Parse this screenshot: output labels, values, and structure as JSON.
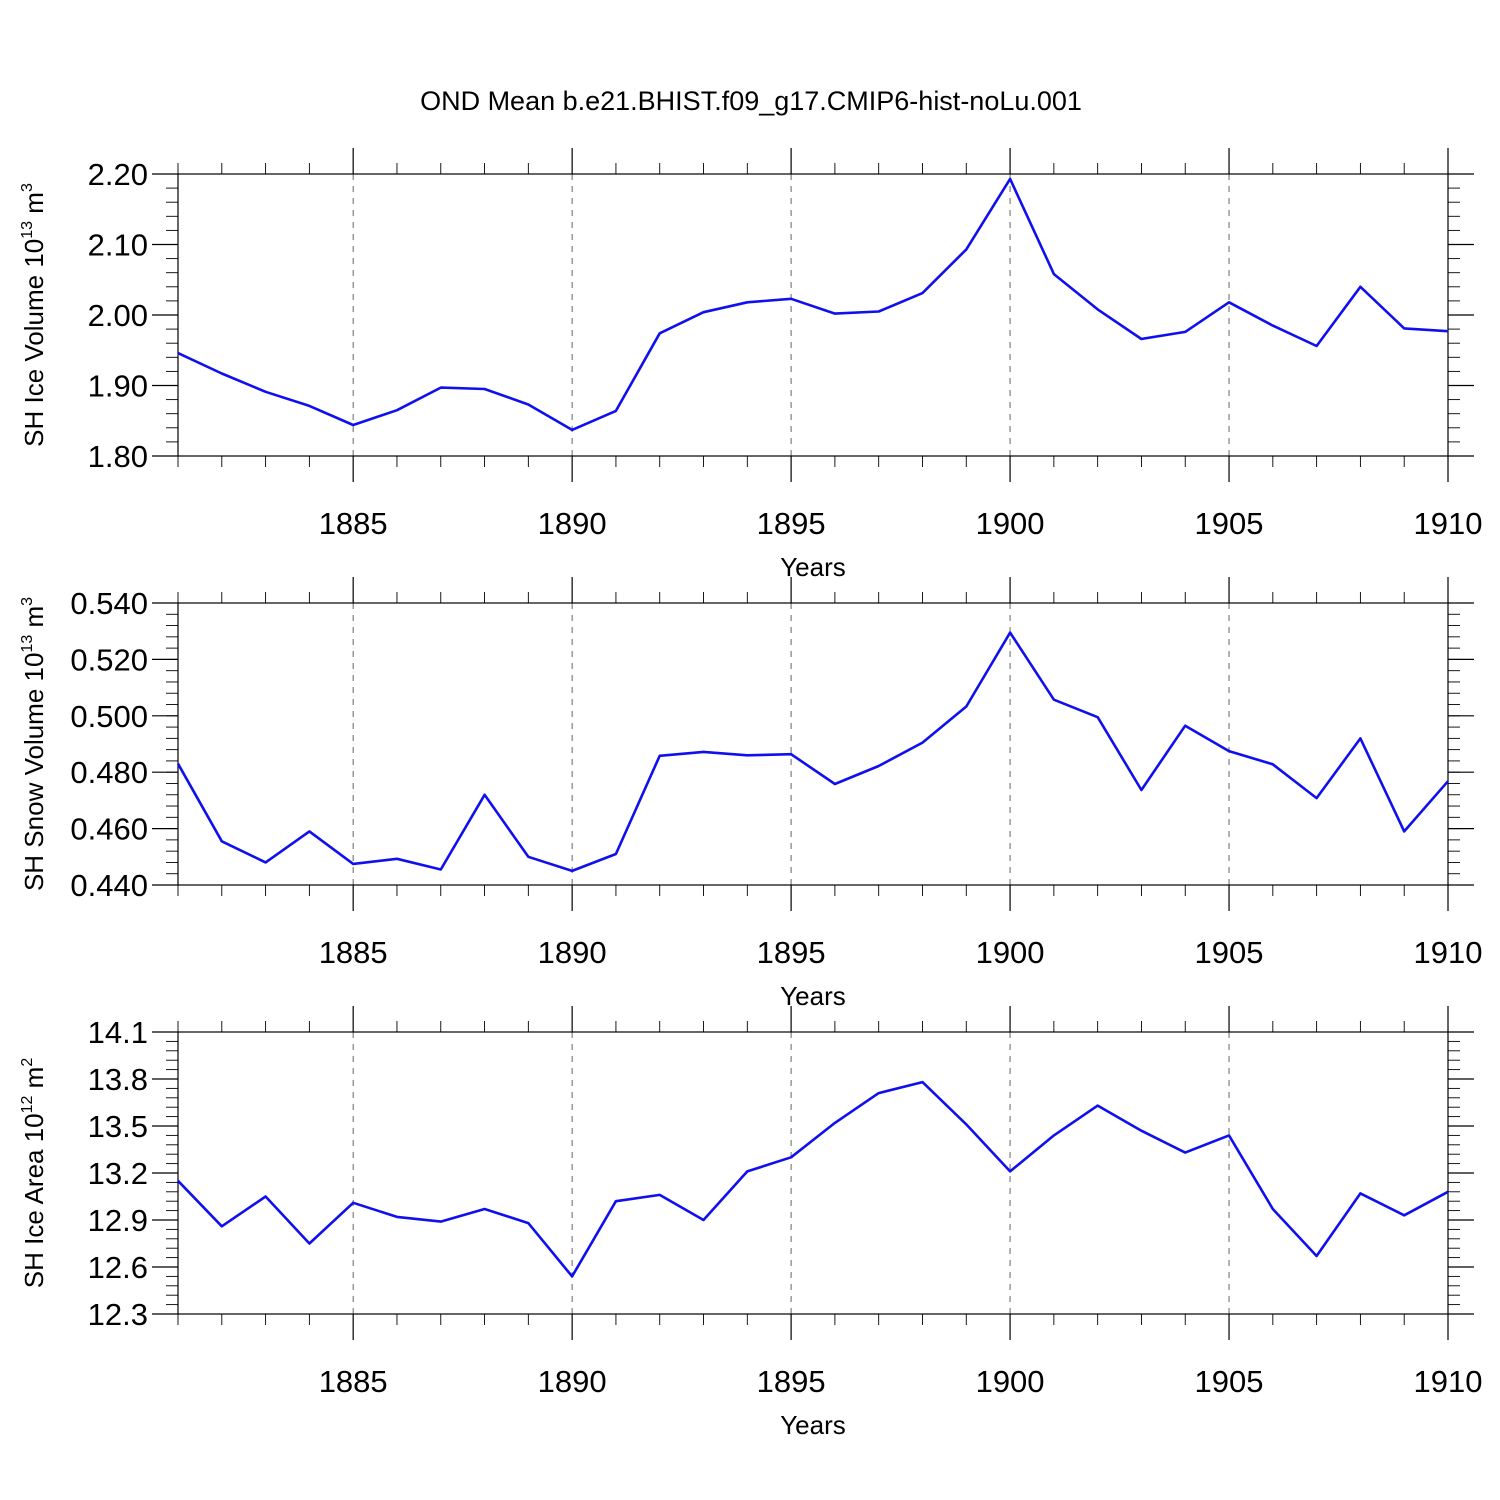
{
  "title": "OND Mean b.e21.BHIST.f09_g17.CMIP6-hist-noLu.001",
  "colors": {
    "series": "#1010ee",
    "grid": "#666666"
  },
  "chart_data": [
    {
      "type": "line",
      "ylabel_main": "SH Ice Volume 10",
      "ylabel_exp": "13",
      "ylabel_unit": " m",
      "ylabel_unit_exp": "3",
      "xlabel": "Years",
      "xlim": [
        1881,
        1910
      ],
      "ylim": [
        1.8,
        2.2
      ],
      "yticks": [
        1.8,
        1.9,
        2.0,
        2.1,
        2.2
      ],
      "ytick_labels": [
        "1.80",
        "1.90",
        "2.00",
        "2.10",
        "2.20"
      ],
      "yminor_step": 0.02,
      "xticks": [
        1885,
        1890,
        1895,
        1900,
        1905,
        1910
      ],
      "xtick_labels": [
        "1885",
        "1890",
        "1895",
        "1900",
        "1905",
        "1910"
      ],
      "grid": "vertical-dashed",
      "x": [
        1881,
        1882,
        1883,
        1884,
        1885,
        1886,
        1887,
        1888,
        1889,
        1890,
        1891,
        1892,
        1893,
        1894,
        1895,
        1896,
        1897,
        1898,
        1899,
        1900,
        1901,
        1902,
        1903,
        1904,
        1905,
        1906,
        1907,
        1908,
        1909,
        1910
      ],
      "y": [
        1.946,
        1.917,
        1.891,
        1.871,
        1.844,
        1.865,
        1.897,
        1.895,
        1.873,
        1.837,
        1.864,
        1.974,
        2.004,
        2.018,
        2.023,
        2.002,
        2.005,
        2.031,
        2.093,
        2.193,
        2.058,
        2.008,
        1.966,
        1.976,
        2.018,
        1.985,
        1.956,
        2.04,
        1.981,
        1.977
      ]
    },
    {
      "type": "line",
      "ylabel_main": "SH Snow Volume 10",
      "ylabel_exp": "13",
      "ylabel_unit": " m",
      "ylabel_unit_exp": "3",
      "xlabel": "Years",
      "xlim": [
        1881,
        1910
      ],
      "ylim": [
        0.44,
        0.54
      ],
      "yticks": [
        0.44,
        0.46,
        0.48,
        0.5,
        0.52,
        0.54
      ],
      "ytick_labels": [
        "0.440",
        "0.460",
        "0.480",
        "0.500",
        "0.520",
        "0.540"
      ],
      "yminor_step": 0.004,
      "xticks": [
        1885,
        1890,
        1895,
        1900,
        1905,
        1910
      ],
      "xtick_labels": [
        "1885",
        "1890",
        "1895",
        "1900",
        "1905",
        "1910"
      ],
      "grid": "vertical-dashed",
      "x": [
        1881,
        1882,
        1883,
        1884,
        1885,
        1886,
        1887,
        1888,
        1889,
        1890,
        1891,
        1892,
        1893,
        1894,
        1895,
        1896,
        1897,
        1898,
        1899,
        1900,
        1901,
        1902,
        1903,
        1904,
        1905,
        1906,
        1907,
        1908,
        1909,
        1910
      ],
      "y": [
        0.483,
        0.4555,
        0.448,
        0.459,
        0.4475,
        0.4493,
        0.4455,
        0.472,
        0.45,
        0.445,
        0.451,
        0.4858,
        0.4872,
        0.486,
        0.4864,
        0.4758,
        0.4822,
        0.4905,
        0.5033,
        0.5295,
        0.5057,
        0.4995,
        0.4737,
        0.4965,
        0.4875,
        0.4828,
        0.4708,
        0.492,
        0.459,
        0.4768
      ]
    },
    {
      "type": "line",
      "ylabel_main": "SH Ice Area 10",
      "ylabel_exp": "12",
      "ylabel_unit": " m",
      "ylabel_unit_exp": "2",
      "xlabel": "Years",
      "xlim": [
        1881,
        1910
      ],
      "ylim": [
        12.3,
        14.1
      ],
      "yticks": [
        12.3,
        12.6,
        12.9,
        13.2,
        13.5,
        13.8,
        14.1
      ],
      "ytick_labels": [
        "12.3",
        "12.6",
        "12.9",
        "13.2",
        "13.5",
        "13.8",
        "14.1"
      ],
      "yminor_step": 0.06,
      "xticks": [
        1885,
        1890,
        1895,
        1900,
        1905,
        1910
      ],
      "xtick_labels": [
        "1885",
        "1890",
        "1895",
        "1900",
        "1905",
        "1910"
      ],
      "grid": "vertical-dashed",
      "x": [
        1881,
        1882,
        1883,
        1884,
        1885,
        1886,
        1887,
        1888,
        1889,
        1890,
        1891,
        1892,
        1893,
        1894,
        1895,
        1896,
        1897,
        1898,
        1899,
        1900,
        1901,
        1902,
        1903,
        1904,
        1905,
        1906,
        1907,
        1908,
        1909,
        1910
      ],
      "y": [
        13.15,
        12.86,
        13.05,
        12.75,
        13.01,
        12.92,
        12.89,
        12.97,
        12.88,
        12.54,
        13.02,
        13.06,
        12.9,
        13.21,
        13.3,
        13.52,
        13.71,
        13.78,
        13.51,
        13.21,
        13.44,
        13.63,
        13.47,
        13.33,
        13.44,
        12.97,
        12.67,
        13.07,
        12.93,
        13.08
      ]
    }
  ]
}
